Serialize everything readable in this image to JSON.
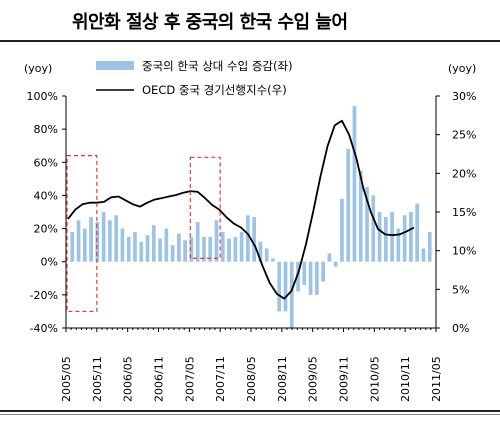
{
  "title": "위안화 절상 후 중국의 한국 수입 늘어",
  "colors": {
    "bars": "#9dc3e6",
    "line": "#000000",
    "highlight": "#e03c31",
    "axis": "#000000"
  },
  "chart_data": {
    "type": "bar+line",
    "title": "위안화 절상 후 중국의 한국 수입 늘어",
    "left_axis": {
      "label": "(yoy)",
      "min": -40,
      "max": 100,
      "step": 20,
      "ticks": [
        "100%",
        "80%",
        "60%",
        "40%",
        "20%",
        "0%",
        "-20%",
        "-40%"
      ]
    },
    "right_axis": {
      "label": "(yoy)",
      "min": 0,
      "max": 30,
      "step": 5,
      "ticks": [
        "30%",
        "25%",
        "20%",
        "15%",
        "10%",
        "5%",
        "0%"
      ]
    },
    "x_labels": [
      "2005/05",
      "2005/11",
      "2006/05",
      "2006/11",
      "2007/05",
      "2007/11",
      "2008/05",
      "2008/11",
      "2009/05",
      "2009/11",
      "2010/05",
      "2010/11",
      "2011/05"
    ],
    "legend_position": "top",
    "grid": false,
    "series": [
      {
        "name": "중국의 한국 상대 수입 증감(좌)",
        "kind": "bar",
        "axis": "left",
        "values": [
          18,
          25,
          20,
          27,
          24,
          30,
          25,
          28,
          20,
          15,
          18,
          12,
          16,
          22,
          14,
          20,
          10,
          17,
          13,
          15,
          24,
          15,
          15,
          25,
          18,
          14,
          15,
          18,
          28,
          27,
          12,
          8,
          2,
          -30,
          -30,
          -40,
          -18,
          -14,
          -20,
          -20,
          -12,
          5,
          -3,
          38,
          68,
          94,
          55,
          45,
          40,
          30,
          27,
          30,
          20,
          28,
          30,
          35,
          8,
          18
        ]
      },
      {
        "name": "OECD 중국 경기선행지수(우)",
        "kind": "line",
        "axis": "right",
        "values": [
          14.1,
          15.3,
          16.0,
          16.2,
          16.2,
          16.3,
          16.9,
          17.0,
          16.5,
          16.0,
          15.7,
          16.2,
          16.6,
          16.8,
          17.0,
          17.2,
          17.5,
          17.7,
          17.6,
          16.8,
          15.9,
          15.3,
          14.3,
          13.5,
          13.0,
          12.1,
          10.5,
          8.0,
          5.8,
          4.4,
          3.8,
          4.8,
          7.3,
          10.8,
          15.0,
          19.5,
          23.5,
          26.2,
          26.8,
          25.0,
          22.0,
          18.0,
          15.0,
          12.8,
          12.1,
          12.0,
          12.1,
          12.5,
          13.0
        ]
      }
    ],
    "annotations": [
      {
        "type": "dashed-box",
        "from": "2005/05",
        "to": "2005/11",
        "ymin": -30,
        "ymax": 64
      },
      {
        "type": "dashed-box",
        "from": "2007/05",
        "to": "2007/11",
        "ymin": 2,
        "ymax": 63
      }
    ]
  }
}
